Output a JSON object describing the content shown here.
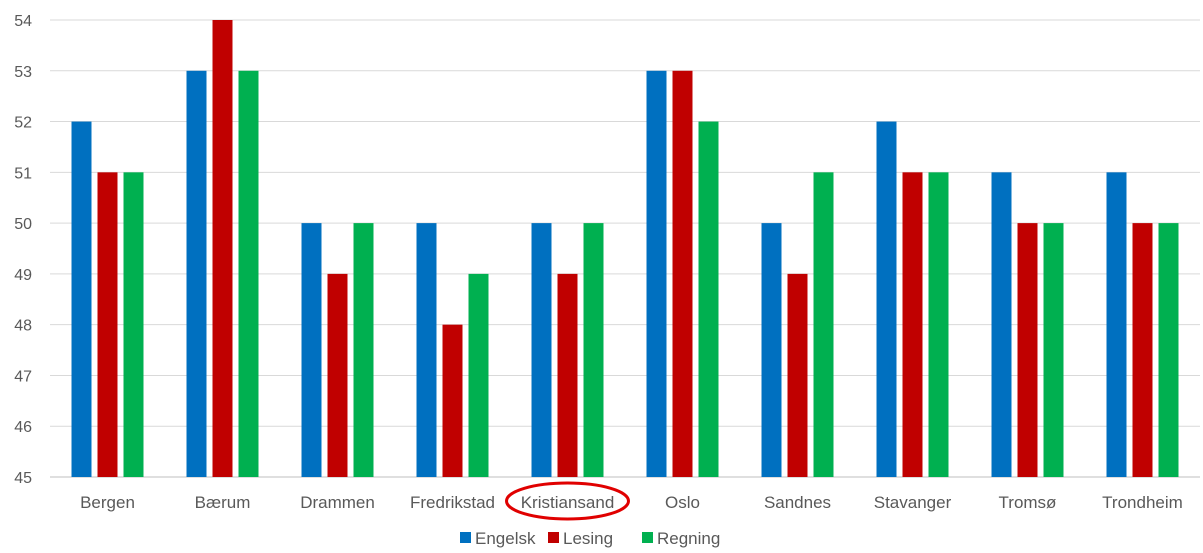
{
  "chart_data": {
    "type": "bar",
    "categories": [
      "Bergen",
      "Bærum",
      "Drammen",
      "Fredrikstad",
      "Kristiansand",
      "Oslo",
      "Sandnes",
      "Stavanger",
      "Tromsø",
      "Trondheim"
    ],
    "series": [
      {
        "name": "Engelsk",
        "color": "#0070C0",
        "values": [
          52,
          53,
          50,
          50,
          50,
          53,
          50,
          52,
          51,
          51
        ]
      },
      {
        "name": "Lesing",
        "color": "#C00000",
        "values": [
          51,
          54,
          49,
          48,
          49,
          53,
          49,
          51,
          50,
          50
        ]
      },
      {
        "name": "Regning",
        "color": "#00B050",
        "values": [
          51,
          53,
          50,
          49,
          50,
          52,
          51,
          51,
          50,
          50
        ]
      }
    ],
    "ylim": [
      45,
      54
    ],
    "yticks": [
      45,
      46,
      47,
      48,
      49,
      50,
      51,
      52,
      53,
      54
    ],
    "grid": true,
    "legend": "bottom",
    "highlight": {
      "category": "Kristiansand",
      "shape": "ellipse",
      "color": "#E00000"
    }
  }
}
